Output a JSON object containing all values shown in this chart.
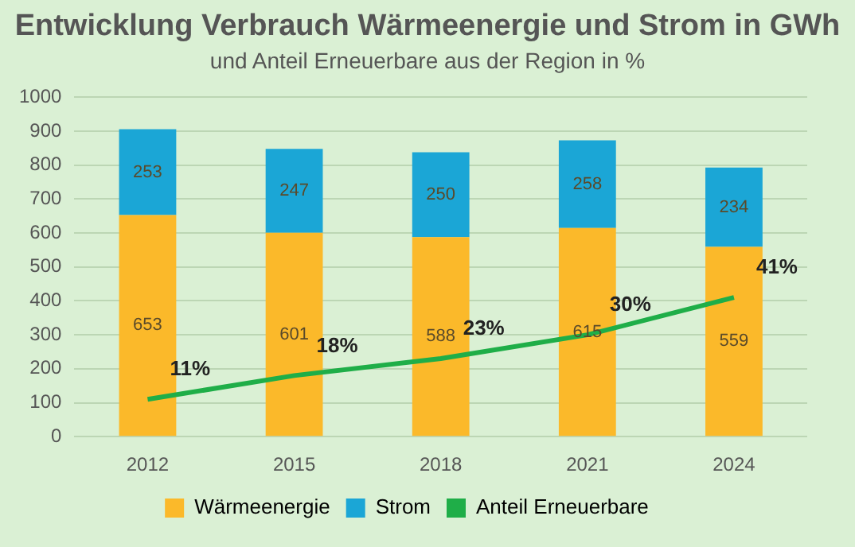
{
  "chart_data": {
    "type": "bar",
    "title": "Entwicklung Verbrauch Wärmeenergie und Strom in GWh",
    "subtitle": "und Anteil Erneuerbare aus der Region in %",
    "categories": [
      "2012",
      "2015",
      "2018",
      "2021",
      "2024"
    ],
    "series": [
      {
        "name": "Wärmeenergie",
        "color": "#fbb92a",
        "values": [
          653,
          601,
          588,
          615,
          559
        ]
      },
      {
        "name": "Strom",
        "color": "#1ba6d6",
        "values": [
          253,
          247,
          250,
          258,
          234
        ]
      },
      {
        "name": "Anteil Erneuerbare",
        "type": "line",
        "axis": "y2",
        "color": "#1fae48",
        "values": [
          11,
          18,
          23,
          30,
          41
        ],
        "value_labels": [
          "11%",
          "18%",
          "23%",
          "30%",
          "41%"
        ]
      }
    ],
    "stacked": true,
    "data_labels": true,
    "ylim": [
      0,
      1000
    ],
    "yticks": [
      0,
      100,
      200,
      300,
      400,
      500,
      600,
      700,
      800,
      900,
      1000
    ],
    "y2lim": [
      0,
      100
    ],
    "grid": "y",
    "legend": "bottom",
    "marker": "none"
  }
}
